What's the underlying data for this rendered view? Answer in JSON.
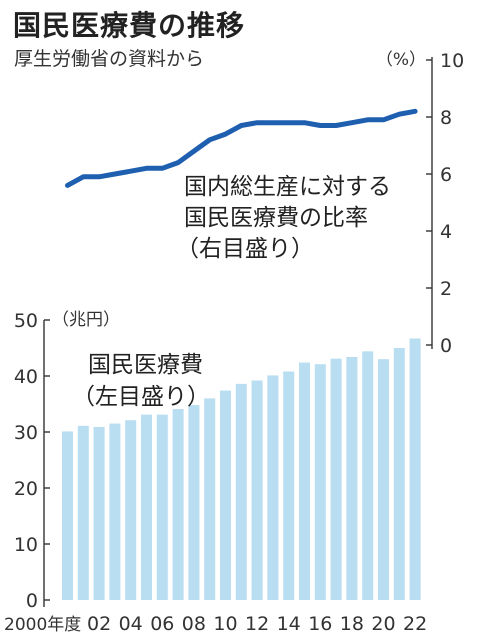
{
  "title": "国民医療費の推移",
  "subtitle": "厚生労働省の資料から",
  "chart_data": {
    "type": "bar+line",
    "categories": [
      "2000年度",
      "",
      "02",
      "",
      "04",
      "",
      "06",
      "",
      "08",
      "",
      "10",
      "",
      "12",
      "",
      "14",
      "",
      "16",
      "",
      "18",
      "",
      "20",
      "",
      "22"
    ],
    "years": [
      2000,
      2001,
      2002,
      2003,
      2004,
      2005,
      2006,
      2007,
      2008,
      2009,
      2010,
      2011,
      2012,
      2013,
      2014,
      2015,
      2016,
      2017,
      2018,
      2019,
      2020,
      2021,
      2022
    ],
    "bar_series": {
      "values": [
        30.1,
        31.1,
        30.9,
        31.5,
        32.1,
        33.1,
        33.1,
        34.1,
        34.8,
        36.0,
        37.4,
        38.6,
        39.2,
        40.1,
        40.8,
        42.4,
        42.1,
        43.1,
        43.4,
        44.4,
        43.0,
        45.0,
        46.7
      ],
      "axis": "left",
      "label_lines": [
        "国民医療費",
        "（左目盛り）"
      ],
      "unit": "（兆円）",
      "ylim": [
        0,
        50
      ],
      "yticks": [
        0,
        10,
        20,
        30,
        40,
        50
      ],
      "color": "#b9ddf1"
    },
    "line_series": {
      "values": [
        5.6,
        5.9,
        5.9,
        6.0,
        6.1,
        6.2,
        6.2,
        6.4,
        6.8,
        7.2,
        7.4,
        7.7,
        7.8,
        7.8,
        7.8,
        7.8,
        7.7,
        7.7,
        7.8,
        7.9,
        7.9,
        8.1,
        8.2
      ],
      "axis": "right",
      "label_lines": [
        "国内総生産に対する",
        "国民医療費の比率",
        "（右目盛り）"
      ],
      "unit": "（%）",
      "ylim": [
        0,
        10
      ],
      "yticks": [
        0,
        2,
        4,
        6,
        8,
        10
      ],
      "color": "#1f5fb0"
    }
  }
}
